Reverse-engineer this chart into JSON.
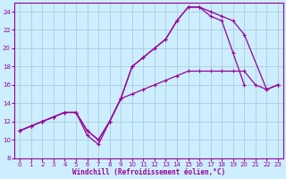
{
  "background_color": "#cceeff",
  "grid_color": "#aaccdd",
  "line_color": "#990099",
  "xlim": [
    -0.5,
    23.5
  ],
  "ylim": [
    8,
    25
  ],
  "xticks": [
    0,
    1,
    2,
    3,
    4,
    5,
    6,
    7,
    8,
    9,
    10,
    11,
    12,
    13,
    14,
    15,
    16,
    17,
    18,
    19,
    20,
    21,
    22,
    23
  ],
  "yticks": [
    8,
    10,
    12,
    14,
    16,
    18,
    20,
    22,
    24
  ],
  "xlabel": "Windchill (Refroidissement éolien,°C)",
  "line1_x": [
    0,
    1,
    2,
    3,
    4,
    5,
    6,
    7,
    8,
    9,
    10,
    11,
    12,
    13,
    14,
    15,
    16,
    17,
    18,
    19,
    20,
    21,
    22,
    23
  ],
  "line1_y": [
    11,
    11.5,
    12,
    12.5,
    13,
    13,
    11,
    10,
    12,
    14.5,
    15,
    15.5,
    16,
    16.5,
    17,
    17.5,
    17.5,
    17.5,
    17.5,
    17.5,
    17.5,
    16,
    15.5,
    16
  ],
  "line2_x": [
    0,
    1,
    2,
    3,
    4,
    5,
    6,
    7,
    8,
    9,
    10,
    11,
    12,
    13,
    14,
    15,
    16,
    17,
    18,
    19,
    20,
    22,
    23
  ],
  "line2_y": [
    11,
    11.5,
    12,
    12.5,
    13,
    13,
    10.5,
    9.5,
    12,
    14.5,
    18,
    19,
    20,
    21,
    23,
    24.5,
    24.5,
    24,
    23.5,
    23,
    21.5,
    15.5,
    16
  ],
  "line3_x": [
    0,
    1,
    2,
    3,
    4,
    5,
    6,
    7,
    8,
    9,
    10,
    11,
    12,
    13,
    14,
    15,
    16,
    17,
    18,
    19,
    20,
    21,
    22,
    23
  ],
  "line3_y": [
    11,
    11.5,
    12,
    12.5,
    13,
    13,
    11,
    10,
    12,
    14.5,
    18,
    19,
    20,
    21,
    23,
    24.5,
    24.5,
    23.5,
    23,
    19.5,
    16,
    null,
    null,
    16
  ]
}
